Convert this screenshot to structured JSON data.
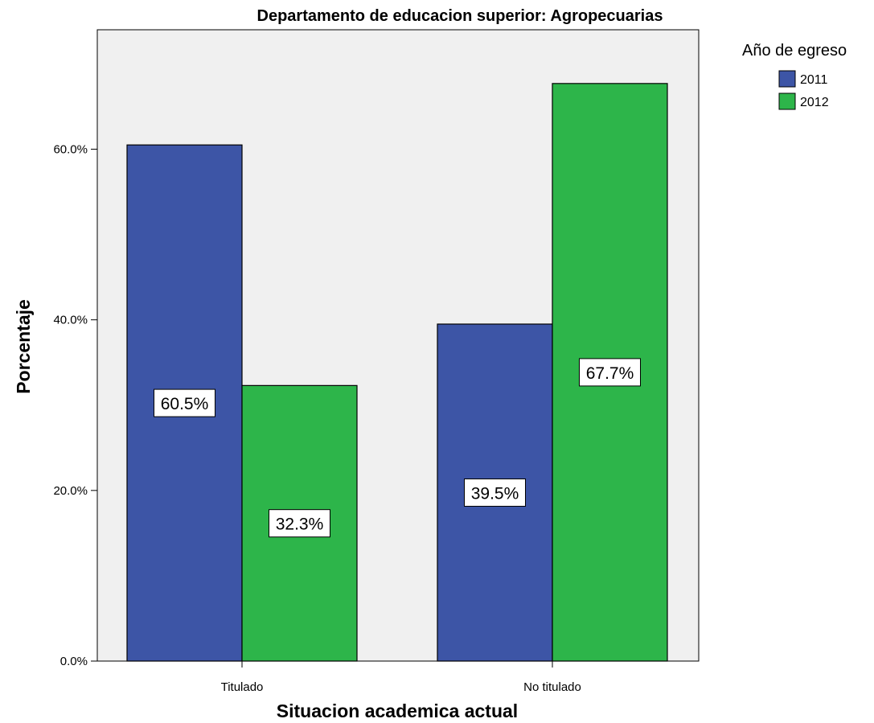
{
  "chart_data": {
    "type": "bar",
    "title": "Departamento de educacion superior: Agropecuarias",
    "xlabel": "Situacion academica actual",
    "ylabel": "Porcentaje",
    "categories": [
      "Titulado",
      "No titulado"
    ],
    "series": [
      {
        "name": "2011",
        "values": [
          60.5,
          39.5
        ],
        "color": "#3d55a6"
      },
      {
        "name": "2012",
        "values": [
          32.3,
          67.7
        ],
        "color": "#2db54a"
      }
    ],
    "data_labels": [
      [
        "60.5%",
        "39.5%"
      ],
      [
        "32.3%",
        "67.7%"
      ]
    ],
    "ylim": [
      0,
      74
    ],
    "y_ticks": [
      0,
      20,
      40,
      60
    ],
    "y_tick_labels": [
      "0.0%",
      "20.0%",
      "40.0%",
      "60.0%"
    ],
    "legend": {
      "title": "Año de egreso",
      "position": "top-right outside plot"
    },
    "plot_background": "#f0f0f0",
    "grid": false
  }
}
